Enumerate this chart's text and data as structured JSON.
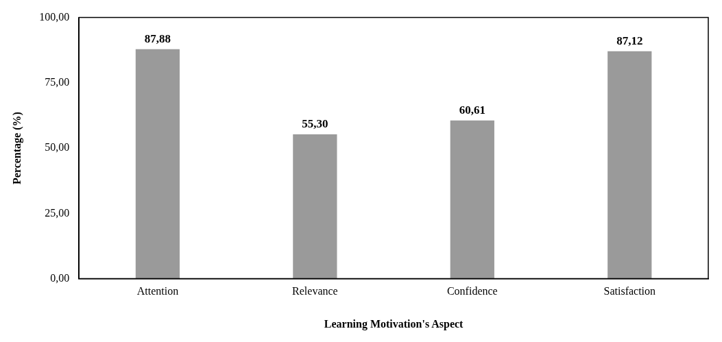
{
  "chart_data": {
    "type": "bar",
    "xlabel": "Learning Motivation's Aspect",
    "ylabel": "Percentage (%)",
    "categories": [
      "Attention",
      "Relevance",
      "Confidence",
      "Satisfaction"
    ],
    "values": [
      87.88,
      55.3,
      60.61,
      87.12
    ],
    "value_labels": [
      "87,88",
      "55,30",
      "60,61",
      "87,12"
    ],
    "color": "#9a9a9a",
    "ylim": [
      0,
      100
    ],
    "yticks": [
      {
        "value": 0,
        "label": "0,00"
      },
      {
        "value": 25,
        "label": "25,00"
      },
      {
        "value": 50,
        "label": "50,00"
      },
      {
        "value": 75,
        "label": "75,00"
      },
      {
        "value": 100,
        "label": "100,00"
      }
    ],
    "grid": false,
    "legend": false
  }
}
